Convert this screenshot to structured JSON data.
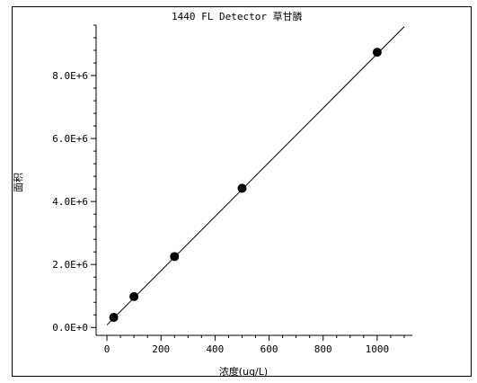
{
  "chart_data": {
    "type": "scatter",
    "title": "1440 FL Detector 草甘膦",
    "xlabel": "浓度(ug/L)",
    "ylabel": "面积",
    "xlim": [
      -40,
      1130
    ],
    "ylim": [
      -0.25,
      9.6
    ],
    "x_ticks": [
      {
        "value": 0,
        "label": "0"
      },
      {
        "value": 200,
        "label": "200"
      },
      {
        "value": 400,
        "label": "400"
      },
      {
        "value": 600,
        "label": "600"
      },
      {
        "value": 800,
        "label": "800"
      },
      {
        "value": 1000,
        "label": "1000"
      }
    ],
    "y_ticks": [
      {
        "value": 0,
        "label": "0.0E+0"
      },
      {
        "value": 2,
        "label": "2.0E+6"
      },
      {
        "value": 4,
        "label": "4.0E+6"
      },
      {
        "value": 6,
        "label": "6.0E+6"
      },
      {
        "value": 8,
        "label": "8.0E+6"
      }
    ],
    "y_scale_note": "values in units of 1E+6",
    "x_minor_step": 50,
    "y_minor_step": 0.4,
    "points": [
      {
        "x": 25,
        "y": 0.32
      },
      {
        "x": 100,
        "y": 0.98
      },
      {
        "x": 250,
        "y": 2.25
      },
      {
        "x": 500,
        "y": 4.42
      },
      {
        "x": 1000,
        "y": 8.74
      }
    ],
    "fit_line": {
      "x": [
        0,
        1100
      ],
      "y": [
        0.08,
        9.55
      ]
    },
    "grid": false,
    "legend": "none"
  }
}
